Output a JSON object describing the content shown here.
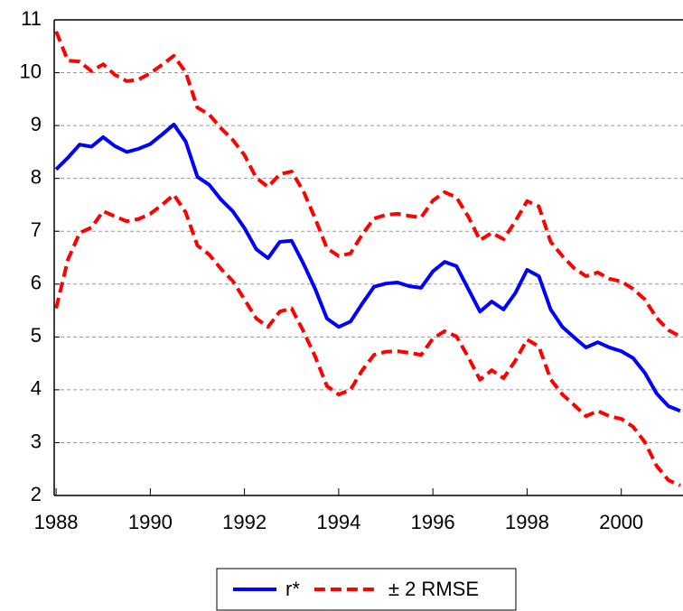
{
  "chart_data": {
    "type": "line",
    "x": [
      1988,
      1988.25,
      1988.5,
      1988.75,
      1989,
      1989.25,
      1989.5,
      1989.75,
      1990,
      1990.25,
      1990.5,
      1990.75,
      1991,
      1991.25,
      1991.5,
      1991.75,
      1992,
      1992.25,
      1992.5,
      1992.75,
      1993,
      1993.25,
      1993.5,
      1993.75,
      1994,
      1994.25,
      1994.5,
      1994.75,
      1995,
      1995.25,
      1995.5,
      1995.75,
      1996,
      1996.25,
      1996.5,
      1996.75,
      1997,
      1997.25,
      1997.5,
      1997.75,
      1998,
      1998.25,
      1998.5,
      1998.75,
      1999,
      1999.25,
      1999.5,
      1999.75,
      2000,
      2000.25,
      2000.5,
      2000.75,
      2001,
      2001.25
    ],
    "series": [
      {
        "name": "r*",
        "color": "#0000ff",
        "dash": false,
        "values": [
          8.17,
          8.39,
          8.64,
          8.6,
          8.78,
          8.61,
          8.5,
          8.56,
          8.65,
          8.83,
          9.02,
          8.7,
          8.03,
          7.88,
          7.6,
          7.38,
          7.06,
          6.66,
          6.49,
          6.8,
          6.82,
          6.39,
          5.91,
          5.35,
          5.19,
          5.29,
          5.63,
          5.95,
          6.01,
          6.03,
          5.96,
          5.93,
          6.24,
          6.42,
          6.34,
          5.91,
          5.48,
          5.67,
          5.52,
          5.83,
          6.27,
          6.15,
          5.52,
          5.19,
          4.99,
          4.8,
          4.9,
          4.8,
          4.73,
          4.6,
          4.32,
          3.93,
          3.69,
          3.6
        ]
      },
      {
        "name": "± 2 RMSE",
        "color": "#ff0000",
        "dash": true,
        "values": [
          10.78,
          10.23,
          10.21,
          10.03,
          10.16,
          9.96,
          9.84,
          9.87,
          9.99,
          10.15,
          10.32,
          10.01,
          9.34,
          9.21,
          8.95,
          8.73,
          8.44,
          8.01,
          7.84,
          8.08,
          8.13,
          7.76,
          7.24,
          6.68,
          6.53,
          6.58,
          6.94,
          7.24,
          7.31,
          7.33,
          7.29,
          7.26,
          7.58,
          7.74,
          7.64,
          7.28,
          6.83,
          6.97,
          6.85,
          7.19,
          7.57,
          7.47,
          6.8,
          6.53,
          6.3,
          6.15,
          6.22,
          6.1,
          6.05,
          5.91,
          5.71,
          5.36,
          5.13,
          5.01
        ],
        "lower_values": [
          5.54,
          6.46,
          6.97,
          7.07,
          7.38,
          7.28,
          7.19,
          7.23,
          7.33,
          7.5,
          7.69,
          7.36,
          6.73,
          6.56,
          6.29,
          6.06,
          5.71,
          5.35,
          5.19,
          5.48,
          5.54,
          5.11,
          4.63,
          4.07,
          3.91,
          4.0,
          4.37,
          4.66,
          4.72,
          4.73,
          4.7,
          4.66,
          4.97,
          5.11,
          5.01,
          4.62,
          4.19,
          4.37,
          4.22,
          4.55,
          4.95,
          4.82,
          4.2,
          3.91,
          3.71,
          3.5,
          3.6,
          3.5,
          3.45,
          3.3,
          3.01,
          2.56,
          2.29,
          2.19
        ]
      }
    ],
    "xlim": [
      1987.96,
      2001.31
    ],
    "xticks": [
      1988,
      1990,
      1992,
      1994,
      1996,
      1998,
      2000
    ],
    "ylim": [
      2,
      11
    ],
    "yticks": [
      2,
      3,
      4,
      5,
      6,
      7,
      8,
      9,
      10,
      11
    ],
    "grid": true,
    "legend": "bottom"
  }
}
